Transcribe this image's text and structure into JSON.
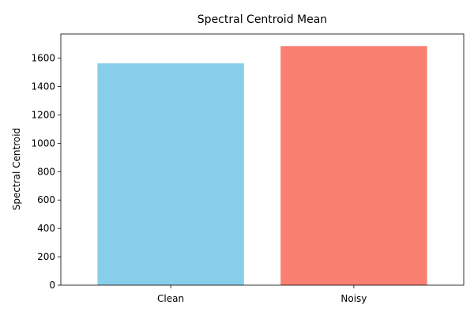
{
  "chart_data": {
    "type": "bar",
    "title": "Spectral Centroid Mean",
    "xlabel": "",
    "ylabel": "Spectral Centroid",
    "categories": [
      "Clean",
      "Noisy"
    ],
    "values": [
      1563,
      1685
    ],
    "colors": [
      "#87CEEB",
      "#FA8072"
    ],
    "ylim": [
      0,
      1770
    ],
    "yticks": [
      0,
      200,
      400,
      600,
      800,
      1000,
      1200,
      1400,
      1600
    ],
    "grid": false,
    "legend": "none"
  }
}
